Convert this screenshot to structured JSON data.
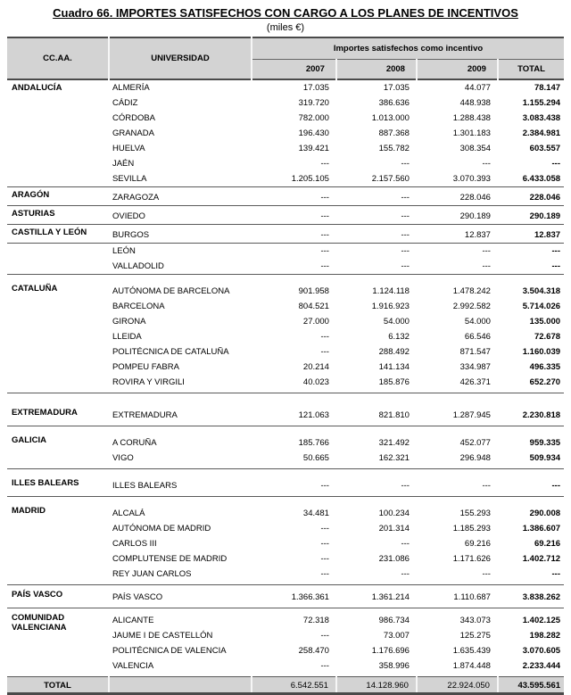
{
  "title": "Cuadro 66. IMPORTES SATISFECHOS CON CARGO A LOS PLANES DE INCENTIVOS",
  "subtitle": "(miles €)",
  "colors": {
    "header_bg": "#d3d3d3",
    "border_dark": "#4a4a4a",
    "group_line": "#5a5a5a",
    "header_separator": "#f6f6f6"
  },
  "table": {
    "col_headers": {
      "ccaa": "CC.AA.",
      "universidad": "UNIVERSIDAD",
      "span_header": "Importes satisfechos como incentivo",
      "years": [
        "2007",
        "2008",
        "2009"
      ],
      "total": "TOTAL"
    },
    "empty_marker": "---",
    "groups": [
      {
        "ccaa": "ANDALUCÍA",
        "spacing": "",
        "rows": [
          {
            "universidad": "ALMERÍA",
            "v2007": "17.035",
            "v2008": "17.035",
            "v2009": "44.077",
            "total": "78.147"
          },
          {
            "universidad": "CÁDIZ",
            "v2007": "319.720",
            "v2008": "386.636",
            "v2009": "448.938",
            "total": "1.155.294"
          },
          {
            "universidad": "CÓRDOBA",
            "v2007": "782.000",
            "v2008": "1.013.000",
            "v2009": "1.288.438",
            "total": "3.083.438"
          },
          {
            "universidad": "GRANADA",
            "v2007": "196.430",
            "v2008": "887.368",
            "v2009": "1.301.183",
            "total": "2.384.981"
          },
          {
            "universidad": "HUELVA",
            "v2007": "139.421",
            "v2008": "155.782",
            "v2009": "308.354",
            "total": "603.557"
          },
          {
            "universidad": "JAÉN",
            "v2007": "---",
            "v2008": "---",
            "v2009": "---",
            "total": "---"
          },
          {
            "universidad": "SEVILLA",
            "v2007": "1.205.105",
            "v2008": "2.157.560",
            "v2009": "3.070.393",
            "total": "6.433.058"
          }
        ]
      },
      {
        "ccaa": "ARAGÓN",
        "spacing": "",
        "rows": [
          {
            "universidad": "ZARAGOZA",
            "v2007": "---",
            "v2008": "---",
            "v2009": "228.046",
            "total": "228.046"
          }
        ]
      },
      {
        "ccaa": "ASTURIAS",
        "spacing": "",
        "rows": [
          {
            "universidad": "OVIEDO",
            "v2007": "---",
            "v2008": "---",
            "v2009": "290.189",
            "total": "290.189"
          }
        ]
      },
      {
        "ccaa": "CASTILLA Y LEÓN",
        "spacing": "",
        "rows": [
          {
            "universidad": "BURGOS",
            "v2007": "---",
            "v2008": "---",
            "v2009": "12.837",
            "total": "12.837"
          }
        ]
      },
      {
        "ccaa": "",
        "spacing": "",
        "rows": [
          {
            "universidad": "LEÓN",
            "v2007": "---",
            "v2008": "---",
            "v2009": "---",
            "total": "---"
          },
          {
            "universidad": "VALLADOLID",
            "v2007": "---",
            "v2008": "---",
            "v2009": "---",
            "total": "---"
          }
        ]
      },
      {
        "ccaa": "CATALUÑA",
        "spacing": "md",
        "rows": [
          {
            "universidad": "AUTÓNOMA DE BARCELONA",
            "v2007": "901.958",
            "v2008": "1.124.118",
            "v2009": "1.478.242",
            "total": "3.504.318"
          },
          {
            "universidad": "BARCELONA",
            "v2007": "804.521",
            "v2008": "1.916.923",
            "v2009": "2.992.582",
            "total": "5.714.026"
          },
          {
            "universidad": "GIRONA",
            "v2007": "27.000",
            "v2008": "54.000",
            "v2009": "54.000",
            "total": "135.000"
          },
          {
            "universidad": "LLEIDA",
            "v2007": "---",
            "v2008": "6.132",
            "v2009": "66.546",
            "total": "72.678"
          },
          {
            "universidad": "POLITÉCNICA DE CATALUÑA",
            "v2007": "---",
            "v2008": "288.492",
            "v2009": "871.547",
            "total": "1.160.039"
          },
          {
            "universidad": "POMPEU FABRA",
            "v2007": "20.214",
            "v2008": "141.134",
            "v2009": "334.987",
            "total": "496.335"
          },
          {
            "universidad": "ROVIRA Y VIRGILI",
            "v2007": "40.023",
            "v2008": "185.876",
            "v2009": "426.371",
            "total": "652.270"
          }
        ]
      },
      {
        "ccaa": "EXTREMADURA",
        "spacing": "lg",
        "rows": [
          {
            "universidad": "EXTREMADURA",
            "v2007": "121.063",
            "v2008": "821.810",
            "v2009": "1.287.945",
            "total": "2.230.818"
          }
        ]
      },
      {
        "ccaa": "GALICIA",
        "spacing": "md",
        "rows": [
          {
            "universidad": "A CORUÑA",
            "v2007": "185.766",
            "v2008": "321.492",
            "v2009": "452.077",
            "total": "959.335"
          },
          {
            "universidad": "VIGO",
            "v2007": "50.665",
            "v2008": "162.321",
            "v2009": "296.948",
            "total": "509.934"
          }
        ]
      },
      {
        "ccaa": "ILLES BALEARS",
        "spacing": "md",
        "rows": [
          {
            "universidad": "ILLES BALEARS",
            "v2007": "---",
            "v2008": "---",
            "v2009": "---",
            "total": "---"
          }
        ]
      },
      {
        "ccaa": "MADRID",
        "spacing": "md",
        "rows": [
          {
            "universidad": "ALCALÁ",
            "v2007": "34.481",
            "v2008": "100.234",
            "v2009": "155.293",
            "total": "290.008"
          },
          {
            "universidad": "AUTÓNOMA DE MADRID",
            "v2007": "---",
            "v2008": "201.314",
            "v2009": "1.185.293",
            "total": "1.386.607"
          },
          {
            "universidad": "CARLOS III",
            "v2007": "---",
            "v2008": "---",
            "v2009": "69.216",
            "total": "69.216"
          },
          {
            "universidad": "COMPLUTENSE DE MADRID",
            "v2007": "---",
            "v2008": "231.086",
            "v2009": "1.171.626",
            "total": "1.402.712"
          },
          {
            "universidad": "REY JUAN CARLOS",
            "v2007": "---",
            "v2008": "---",
            "v2009": "---",
            "total": "---"
          }
        ]
      },
      {
        "ccaa": "PAÍS VASCO",
        "spacing": "sm",
        "rows": [
          {
            "universidad": "PAÍS VASCO",
            "v2007": "1.366.361",
            "v2008": "1.361.214",
            "v2009": "1.110.687",
            "total": "3.838.262"
          }
        ]
      },
      {
        "ccaa": "COMUNIDAD VALENCIANA",
        "spacing": "sm",
        "rows": [
          {
            "universidad": "ALICANTE",
            "v2007": "72.318",
            "v2008": "986.734",
            "v2009": "343.073",
            "total": "1.402.125"
          },
          {
            "universidad": "JAUME I DE CASTELLÓN",
            "v2007": "---",
            "v2008": "73.007",
            "v2009": "125.275",
            "total": "198.282"
          },
          {
            "universidad": "POLITÉCNICA DE VALENCIA",
            "v2007": "258.470",
            "v2008": "1.176.696",
            "v2009": "1.635.439",
            "total": "3.070.605"
          },
          {
            "universidad": "VALENCIA",
            "v2007": "---",
            "v2008": "358.996",
            "v2009": "1.874.448",
            "total": "2.233.444"
          }
        ]
      }
    ],
    "total_row": {
      "label": "TOTAL",
      "v2007": "6.542.551",
      "v2008": "14.128.960",
      "v2009": "22.924.050",
      "total": "43.595.561"
    }
  }
}
